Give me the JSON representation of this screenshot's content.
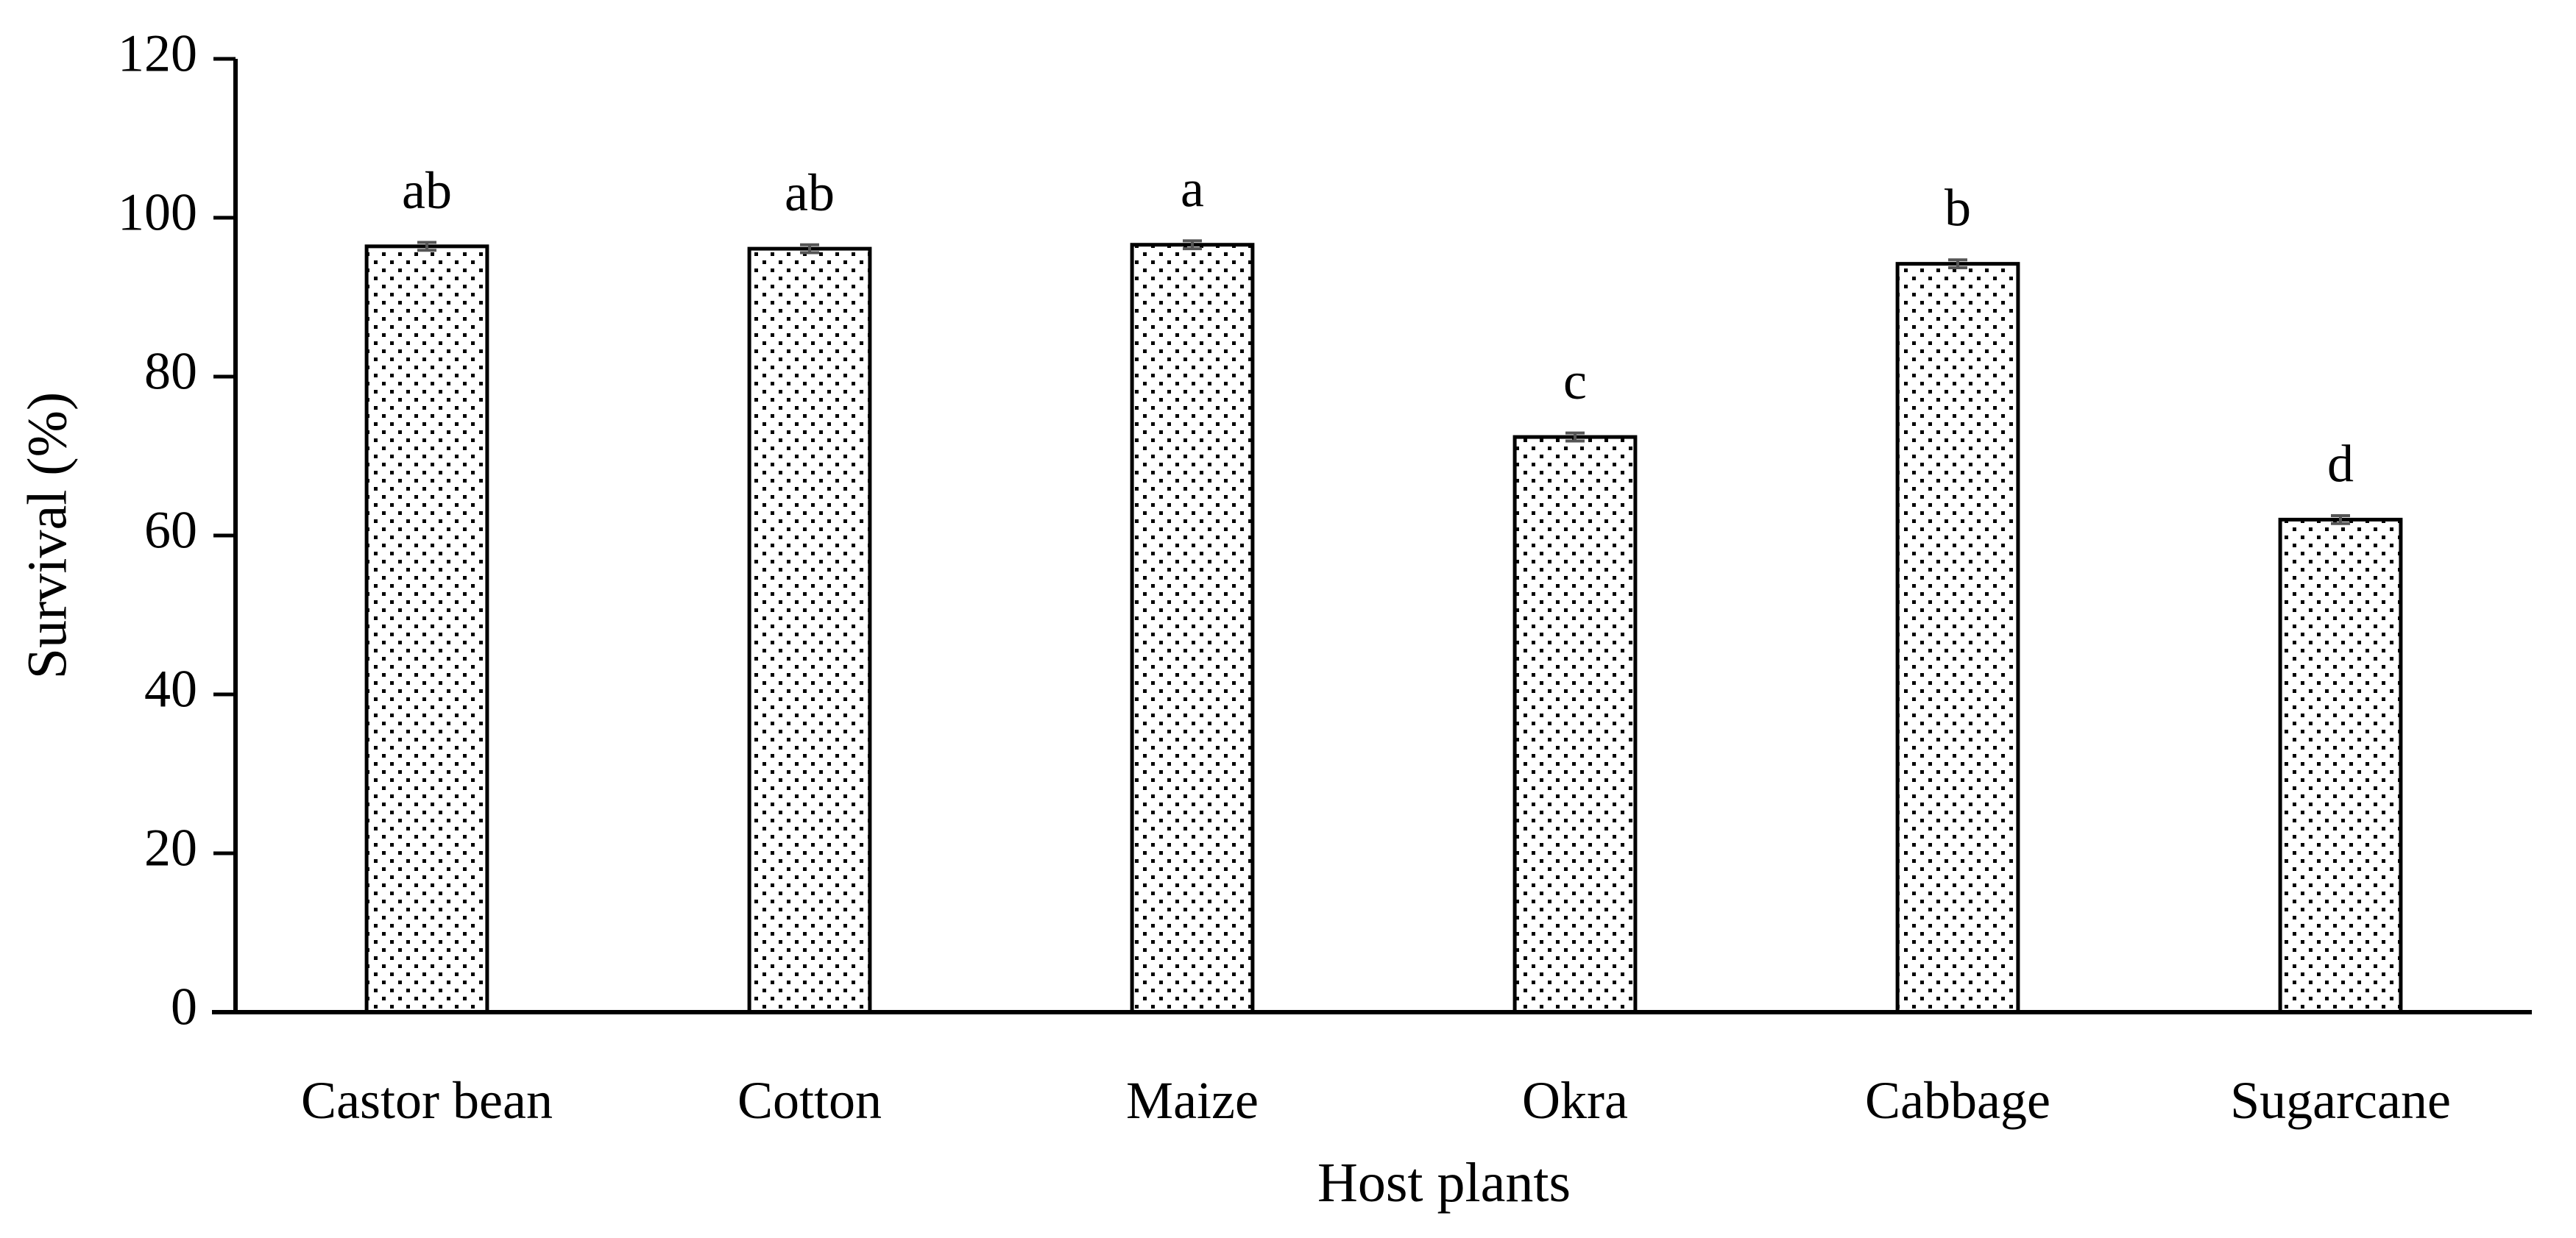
{
  "chart_data": {
    "type": "bar",
    "title": "",
    "xlabel": "Host plants",
    "ylabel": "Survival (%)",
    "ylim": [
      0,
      120
    ],
    "yticks": [
      0,
      20,
      40,
      60,
      80,
      100,
      120
    ],
    "grid": false,
    "legend": "none",
    "categories": [
      "Castor bean",
      "Cotton",
      "Maize",
      "Okra",
      "Cabbage",
      "Sugarcane"
    ],
    "values": [
      96.4,
      96.1,
      96.6,
      72.4,
      94.2,
      62.0
    ],
    "errors": [
      0.5,
      0.5,
      0.5,
      0.5,
      0.5,
      0.5
    ],
    "significance_letters": [
      "ab",
      "ab",
      "a",
      "c",
      "b",
      "d"
    ],
    "colors": {
      "bar_fill_pattern": "stippled",
      "bar_stroke": "#000000",
      "error_bar": "#555555",
      "axis": "#000000"
    }
  }
}
